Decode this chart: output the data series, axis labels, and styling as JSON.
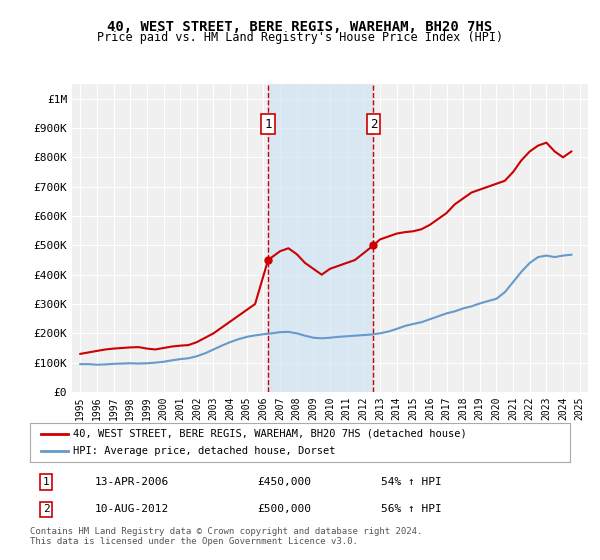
{
  "title": "40, WEST STREET, BERE REGIS, WAREHAM, BH20 7HS",
  "subtitle": "Price paid vs. HM Land Registry's House Price Index (HPI)",
  "red_label": "40, WEST STREET, BERE REGIS, WAREHAM, BH20 7HS (detached house)",
  "blue_label": "HPI: Average price, detached house, Dorset",
  "transaction1": {
    "label": "1",
    "date": "13-APR-2006",
    "price": 450000,
    "hpi_pct": "54% ↑ HPI",
    "year": 2006.28
  },
  "transaction2": {
    "label": "2",
    "date": "10-AUG-2012",
    "price": 500000,
    "hpi_pct": "56% ↑ HPI",
    "year": 2012.61
  },
  "footer": "Contains HM Land Registry data © Crown copyright and database right 2024.\nThis data is licensed under the Open Government Licence v3.0.",
  "ylim": [
    0,
    1050000
  ],
  "yticks": [
    0,
    100000,
    200000,
    300000,
    400000,
    500000,
    600000,
    700000,
    800000,
    900000,
    1000000
  ],
  "ytick_labels": [
    "£0",
    "£100K",
    "£200K",
    "£300K",
    "£400K",
    "£500K",
    "£600K",
    "£700K",
    "£800K",
    "£900K",
    "£1M"
  ],
  "xlim_start": 1994.5,
  "xlim_end": 2025.5,
  "xticks": [
    1995,
    1996,
    1997,
    1998,
    1999,
    2000,
    2001,
    2002,
    2003,
    2004,
    2005,
    2006,
    2007,
    2008,
    2009,
    2010,
    2011,
    2012,
    2013,
    2014,
    2015,
    2016,
    2017,
    2018,
    2019,
    2020,
    2021,
    2022,
    2023,
    2024,
    2025
  ],
  "red_line": {
    "x": [
      1995,
      1995.5,
      1996,
      1996.5,
      1997,
      1997.5,
      1998,
      1998.5,
      1999,
      1999.5,
      2000,
      2000.5,
      2001,
      2001.5,
      2002,
      2002.5,
      2003,
      2003.5,
      2004,
      2004.5,
      2005,
      2005.5,
      2006.28,
      2007,
      2007.5,
      2008,
      2008.5,
      2009,
      2009.5,
      2010,
      2010.5,
      2011,
      2011.5,
      2012.61,
      2013,
      2013.5,
      2014,
      2014.5,
      2015,
      2015.5,
      2016,
      2016.5,
      2017,
      2017.5,
      2018,
      2018.5,
      2019,
      2019.5,
      2020,
      2020.5,
      2021,
      2021.5,
      2022,
      2022.5,
      2023,
      2023.5,
      2024,
      2024.5
    ],
    "y": [
      130000,
      135000,
      140000,
      145000,
      148000,
      150000,
      152000,
      153000,
      148000,
      145000,
      150000,
      155000,
      158000,
      160000,
      170000,
      185000,
      200000,
      220000,
      240000,
      260000,
      280000,
      300000,
      450000,
      480000,
      490000,
      470000,
      440000,
      420000,
      400000,
      420000,
      430000,
      440000,
      450000,
      500000,
      520000,
      530000,
      540000,
      545000,
      548000,
      555000,
      570000,
      590000,
      610000,
      640000,
      660000,
      680000,
      690000,
      700000,
      710000,
      720000,
      750000,
      790000,
      820000,
      840000,
      850000,
      820000,
      800000,
      820000
    ]
  },
  "blue_line": {
    "x": [
      1995,
      1995.5,
      1996,
      1996.5,
      1997,
      1997.5,
      1998,
      1998.5,
      1999,
      1999.5,
      2000,
      2000.5,
      2001,
      2001.5,
      2002,
      2002.5,
      2003,
      2003.5,
      2004,
      2004.5,
      2005,
      2005.5,
      2006,
      2006.5,
      2007,
      2007.5,
      2008,
      2008.5,
      2009,
      2009.5,
      2010,
      2010.5,
      2011,
      2011.5,
      2012,
      2012.5,
      2013,
      2013.5,
      2014,
      2014.5,
      2015,
      2015.5,
      2016,
      2016.5,
      2017,
      2017.5,
      2018,
      2018.5,
      2019,
      2019.5,
      2020,
      2020.5,
      2021,
      2021.5,
      2022,
      2022.5,
      2023,
      2023.5,
      2024,
      2024.5
    ],
    "y": [
      95000,
      95000,
      93000,
      94000,
      96000,
      97000,
      98000,
      97000,
      98000,
      100000,
      103000,
      108000,
      112000,
      115000,
      122000,
      132000,
      145000,
      158000,
      170000,
      180000,
      188000,
      193000,
      197000,
      200000,
      204000,
      205000,
      200000,
      192000,
      185000,
      183000,
      185000,
      188000,
      190000,
      192000,
      194000,
      196000,
      200000,
      206000,
      215000,
      225000,
      232000,
      238000,
      248000,
      258000,
      268000,
      275000,
      285000,
      292000,
      302000,
      310000,
      318000,
      340000,
      375000,
      410000,
      440000,
      460000,
      465000,
      460000,
      465000,
      468000
    ]
  },
  "bg_color": "#ffffff",
  "plot_bg_color": "#f0f0f0",
  "grid_color": "#ffffff",
  "red_color": "#cc0000",
  "blue_color": "#6699cc",
  "shade_color": "#d0e4f5",
  "vline_color": "#cc0000"
}
